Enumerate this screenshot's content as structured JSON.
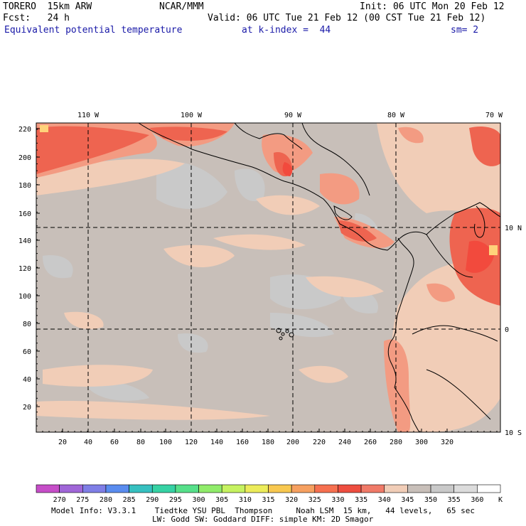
{
  "header": {
    "model": "TORERO  15km ARW",
    "center": "NCAR/MMM",
    "init": "Init: 06 UTC Mon 20 Feb 12",
    "fcst": "Fcst:   24 h",
    "valid": "Valid: 06 UTC Tue 21 Feb 12 (00 CST Tue 21 Feb 12)",
    "field": "Equivalent potential temperature",
    "level": "at k-index =  44",
    "smooth": "sm= 2"
  },
  "map": {
    "top_lon_labels": [
      "110 W",
      "100 W",
      "90 W",
      "80 W",
      "70 W"
    ],
    "right_lat_labels": [
      "10 N",
      "0",
      "10 S"
    ],
    "y_grid_labels": [
      "220",
      "200",
      "180",
      "160",
      "140",
      "120",
      "100",
      "80",
      "60",
      "40",
      "20"
    ],
    "x_grid_labels": [
      "20",
      "40",
      "60",
      "80",
      "100",
      "120",
      "140",
      "160",
      "180",
      "200",
      "220",
      "240",
      "260",
      "280",
      "300",
      "320"
    ],
    "colors": {
      "ocean_base": "#c8bfb9",
      "cool_patch": "#c9c9c9",
      "warm_patch": "#f1cdb7",
      "hot_1": "#f39b82",
      "hot_2": "#ee6450",
      "hot_3": "#f24a3d",
      "hot_4": "#ffd27a",
      "coast": "#000000"
    }
  },
  "colorbar": {
    "labels": [
      "270",
      "275",
      "280",
      "285",
      "290",
      "295",
      "300",
      "305",
      "310",
      "315",
      "320",
      "325",
      "330",
      "335",
      "340",
      "345",
      "350",
      "355",
      "360"
    ],
    "unit": "K",
    "colors": [
      "#c64ec8",
      "#a066d8",
      "#7f7ee6",
      "#5a8cef",
      "#36c0c0",
      "#36d2a4",
      "#56e08a",
      "#90ec6a",
      "#c6f260",
      "#ecec5a",
      "#f8c850",
      "#f6a060",
      "#f67050",
      "#ee4e40",
      "#f07a68",
      "#f1cdb7",
      "#c8bfb9",
      "#c9c9c9",
      "#dcdcdc",
      "#ffffff"
    ]
  },
  "footer": {
    "line1": "Model Info: V3.3.1    Tiedtke YSU PBL  Thompson     Noah LSM  15 km,   44 levels,   65 sec",
    "line2": "LW: Godd SW: Goddard DIFF: simple KM: 2D Smagor"
  }
}
